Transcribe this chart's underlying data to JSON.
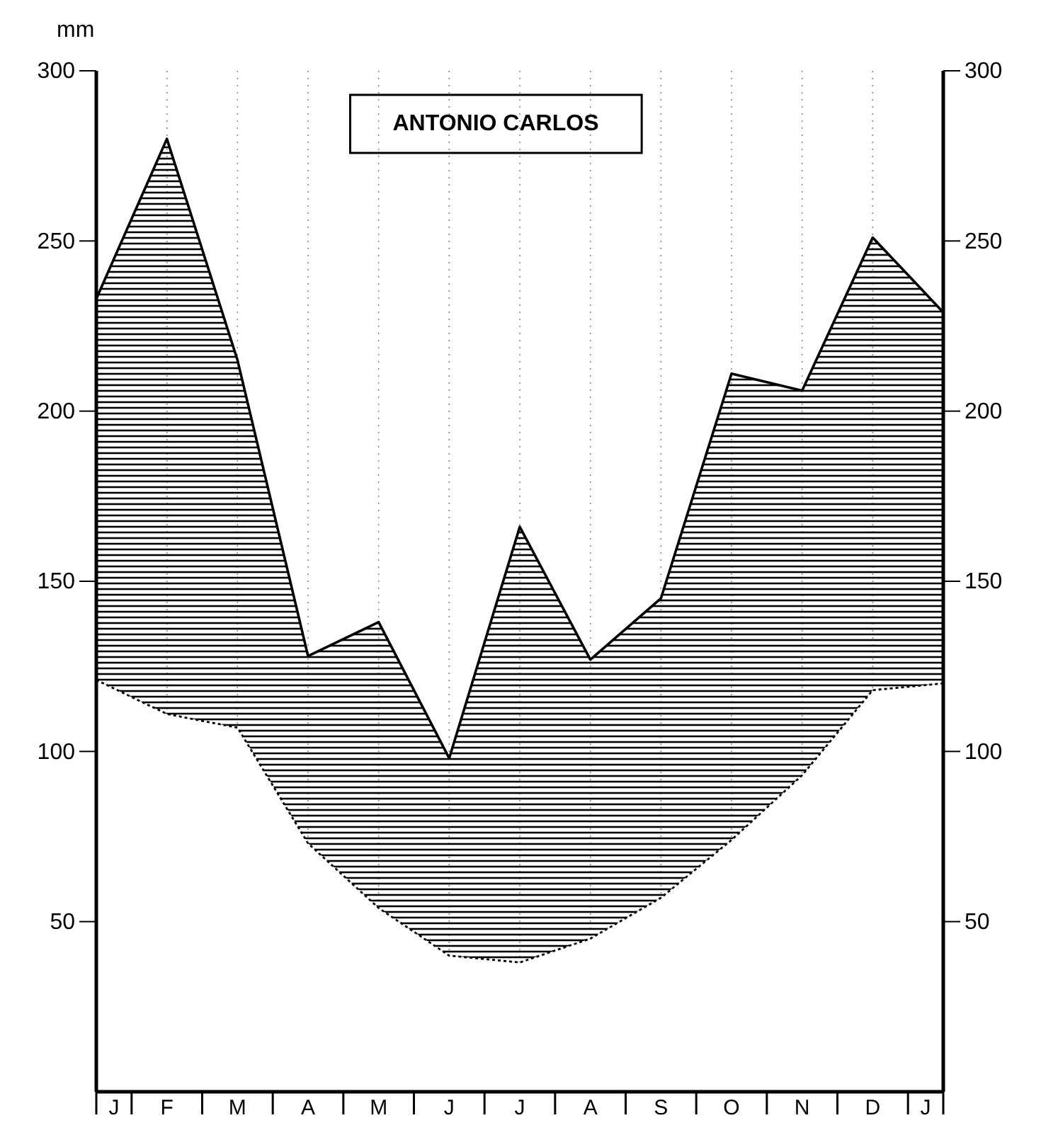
{
  "chart_data": {
    "type": "area",
    "title": "ANTONIO CARLOS",
    "ylabel": "mm",
    "categories": [
      "J",
      "F",
      "M",
      "A",
      "M",
      "J",
      "J",
      "A",
      "S",
      "O",
      "N",
      "D",
      "J"
    ],
    "series": [
      {
        "color": "#000000",
        "line_style": "solid",
        "values": [
          233,
          280,
          215,
          128,
          138,
          98,
          166,
          127,
          145,
          211,
          206,
          251,
          229
        ]
      },
      {
        "color": "#000000",
        "line_style": "dotted",
        "values": [
          121,
          111,
          107,
          73,
          54,
          40,
          38,
          45,
          57,
          74,
          93,
          118,
          120
        ]
      }
    ],
    "ylim": [
      0,
      300
    ],
    "yticks": [
      50,
      100,
      150,
      200,
      250,
      300
    ],
    "y2lim": [
      0,
      300
    ],
    "y2ticks": [
      50,
      100,
      150,
      200,
      250,
      300
    ],
    "grid": "x",
    "marker": "none"
  }
}
